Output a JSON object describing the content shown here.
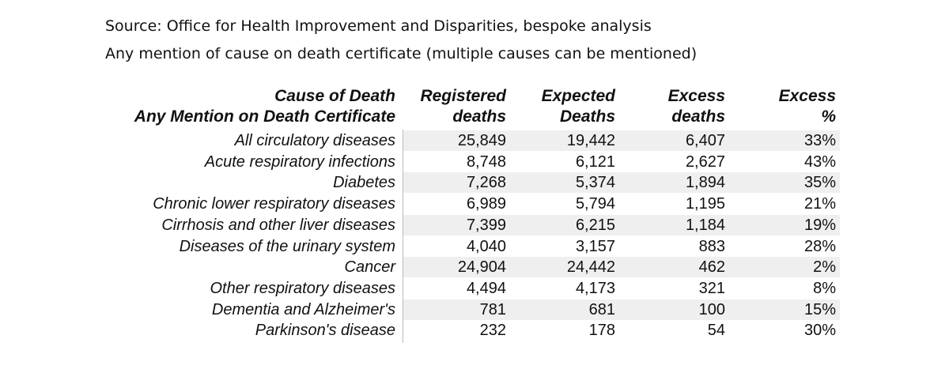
{
  "source": [
    "Source: Office for Health Improvement and Disparities, bespoke analysis",
    "Any mention of cause on death certificate (multiple causes can be mentioned)"
  ],
  "table": {
    "header": [
      [
        "Cause of Death",
        "Any Mention on Death Certificate"
      ],
      [
        "Registered",
        "deaths"
      ],
      [
        "Expected",
        "Deaths"
      ],
      [
        "Excess",
        "deaths"
      ],
      [
        "Excess",
        "%"
      ]
    ],
    "rows": [
      [
        "All circulatory diseases",
        "25,849",
        "19,442",
        "6,407",
        "33%"
      ],
      [
        "Acute respiratory infections",
        "8,748",
        "6,121",
        "2,627",
        "43%"
      ],
      [
        "Diabetes",
        "7,268",
        "5,374",
        "1,894",
        "35%"
      ],
      [
        "Chronic lower respiratory diseases",
        "6,989",
        "5,794",
        "1,195",
        "21%"
      ],
      [
        "Cirrhosis and other liver diseases",
        "7,399",
        "6,215",
        "1,184",
        "19%"
      ],
      [
        "Diseases of the urinary system",
        "4,040",
        "3,157",
        "883",
        "28%"
      ],
      [
        "Cancer",
        "24,904",
        "24,442",
        "462",
        "2%"
      ],
      [
        "Other respiratory diseases",
        "4,494",
        "4,173",
        "321",
        "8%"
      ],
      [
        "Dementia and Alzheimer's",
        "781",
        "681",
        "100",
        "15%"
      ],
      [
        "Parkinson's disease",
        "232",
        "178",
        "54",
        "30%"
      ]
    ]
  }
}
